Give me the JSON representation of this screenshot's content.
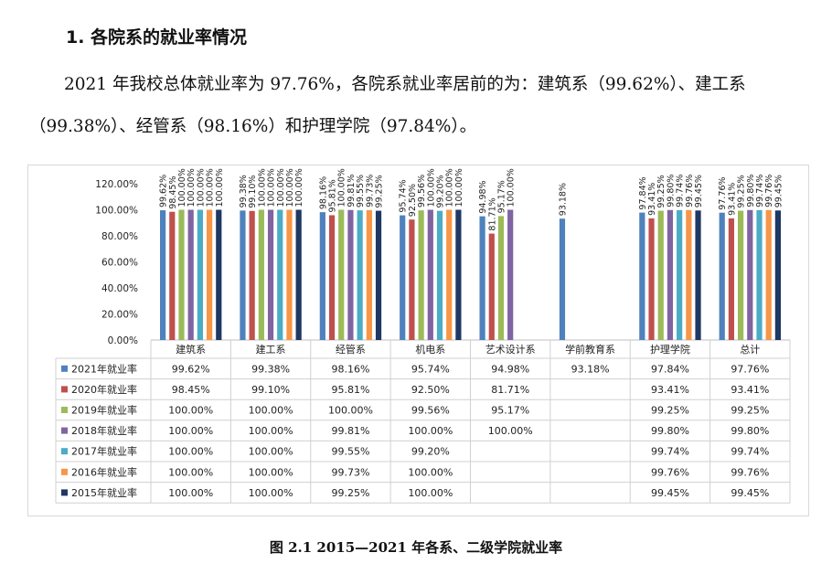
{
  "heading": "1. 各院系的就业率情况",
  "paragraph": "2021 年我校总体就业率为 97.76%，各院系就业率居前的为：建筑系（99.62%）、建工系（99.38%）、经管系（98.16%）和护理学院（97.84%）。",
  "caption": "图 2.1 2015—2021 年各系、二级学院就业率",
  "chart_data": {
    "type": "bar",
    "categories": [
      "建筑系",
      "建工系",
      "经管系",
      "机电系",
      "艺术设计系",
      "学前教育系",
      "护理学院",
      "总计"
    ],
    "ylim": [
      0,
      120
    ],
    "yticks": [
      "0.00%",
      "20.00%",
      "40.00%",
      "60.00%",
      "80.00%",
      "100.00%",
      "120.00%"
    ],
    "grid": false,
    "legend_position": "data-table-left",
    "series": [
      {
        "name": "2021年就业率",
        "color": "#4F81BD",
        "values": [
          99.62,
          99.38,
          98.16,
          95.74,
          94.98,
          93.18,
          97.84,
          97.76
        ],
        "labels": [
          "99.62%",
          "99.38%",
          "98.16%",
          "95.74%",
          "94.98%",
          "93.18%",
          "97.84%",
          "97.76%"
        ]
      },
      {
        "name": "2020年就业率",
        "color": "#C0504D",
        "values": [
          98.45,
          99.1,
          95.81,
          92.5,
          81.71,
          null,
          93.41,
          93.41
        ],
        "labels": [
          "98.45%",
          "99.10%",
          "95.81%",
          "92.50%",
          "81.71%",
          "",
          "93.41%",
          "93.41%"
        ]
      },
      {
        "name": "2019年就业率",
        "color": "#9BBB59",
        "values": [
          100.0,
          100.0,
          100.0,
          99.56,
          95.17,
          null,
          99.25,
          99.25
        ],
        "labels": [
          "100.00%",
          "100.00%",
          "100.00%",
          "99.56%",
          "95.17%",
          "",
          "99.25%",
          "99.25%"
        ]
      },
      {
        "name": "2018年就业率",
        "color": "#8064A2",
        "values": [
          100.0,
          100.0,
          99.81,
          100.0,
          100.0,
          null,
          99.8,
          99.8
        ],
        "labels": [
          "100.00%",
          "100.00%",
          "99.81%",
          "100.00%",
          "100.00%",
          "",
          "99.80%",
          "99.80%"
        ]
      },
      {
        "name": "2017年就业率",
        "color": "#4BACC6",
        "values": [
          100.0,
          100.0,
          99.55,
          99.2,
          null,
          null,
          99.74,
          99.74
        ],
        "labels": [
          "100.00%",
          "100.00%",
          "99.55%",
          "99.20%",
          "",
          "",
          "99.74%",
          "99.74%"
        ]
      },
      {
        "name": "2016年就业率",
        "color": "#F79646",
        "values": [
          100.0,
          100.0,
          99.73,
          100.0,
          null,
          null,
          99.76,
          99.76
        ],
        "labels": [
          "100.00%",
          "100.00%",
          "99.73%",
          "100.00%",
          "",
          "",
          "99.76%",
          "99.76%"
        ]
      },
      {
        "name": "2015年就业率",
        "color": "#1F3864",
        "values": [
          100.0,
          100.0,
          99.25,
          100.0,
          null,
          null,
          99.45,
          99.45
        ],
        "labels": [
          "100.00%",
          "100.00%",
          "99.25%",
          "100.00%",
          "",
          "",
          "99.45%",
          "99.45%"
        ]
      }
    ]
  }
}
